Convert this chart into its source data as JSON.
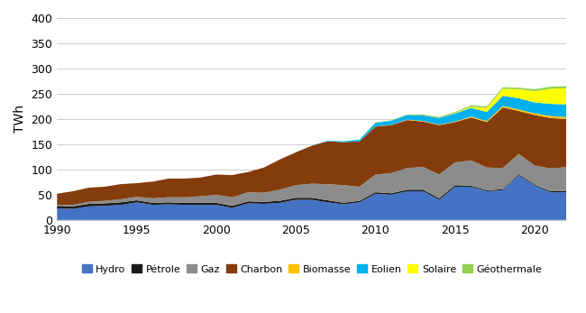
{
  "years": [
    1990,
    1991,
    1992,
    1993,
    1994,
    1995,
    1996,
    1997,
    1998,
    1999,
    2000,
    2001,
    2002,
    2003,
    2004,
    2005,
    2006,
    2007,
    2008,
    2009,
    2010,
    2011,
    2012,
    2013,
    2014,
    2015,
    2016,
    2017,
    2018,
    2019,
    2020,
    2021,
    2022
  ],
  "hydro": [
    23,
    22,
    27,
    28,
    30,
    35,
    30,
    31,
    30,
    30,
    30,
    24,
    33,
    32,
    34,
    40,
    40,
    35,
    31,
    35,
    52,
    50,
    57,
    57,
    40,
    66,
    66,
    57,
    59,
    89,
    68,
    55,
    55
  ],
  "petrole": [
    5,
    5,
    5,
    5,
    5,
    4,
    4,
    4,
    4,
    4,
    4,
    4,
    4,
    4,
    4,
    4,
    4,
    4,
    3,
    3,
    3,
    3,
    3,
    3,
    3,
    3,
    2,
    2,
    2,
    2,
    2,
    2,
    2
  ],
  "gaz": [
    2,
    3,
    4,
    5,
    6,
    7,
    9,
    10,
    11,
    13,
    16,
    17,
    18,
    18,
    22,
    25,
    28,
    32,
    35,
    28,
    35,
    40,
    43,
    45,
    47,
    45,
    50,
    45,
    42,
    40,
    38,
    45,
    48
  ],
  "charbon": [
    22,
    27,
    28,
    28,
    30,
    27,
    33,
    37,
    37,
    37,
    40,
    44,
    40,
    50,
    60,
    65,
    75,
    85,
    85,
    90,
    95,
    95,
    95,
    90,
    98,
    80,
    85,
    90,
    120,
    85,
    100,
    100,
    95
  ],
  "biomasse": [
    0,
    0,
    0,
    0,
    0,
    0,
    0,
    0,
    0,
    0,
    0,
    0,
    0,
    0,
    0,
    0,
    0,
    0,
    0,
    0,
    0.5,
    0.5,
    1,
    1,
    1,
    1,
    2,
    2,
    3,
    3,
    3,
    4,
    4
  ],
  "eolien": [
    0,
    0,
    0,
    0,
    0,
    0,
    0,
    0,
    0,
    0,
    0,
    0,
    0,
    0,
    0,
    0.1,
    0.3,
    1,
    2,
    3,
    7,
    8,
    9,
    11,
    13,
    16,
    17,
    18,
    20,
    22,
    22,
    24,
    25
  ],
  "solaire": [
    0,
    0,
    0,
    0,
    0,
    0,
    0,
    0,
    0,
    0,
    0,
    0,
    0,
    0,
    0,
    0,
    0,
    0,
    0,
    0,
    0,
    0,
    0,
    0,
    0,
    1,
    2,
    8,
    14,
    18,
    22,
    30,
    32
  ],
  "geothermale": [
    0,
    0,
    0,
    0,
    0,
    0,
    0,
    0,
    0,
    0,
    0,
    0,
    0,
    0,
    0,
    0,
    0,
    0,
    0,
    0,
    0.5,
    1,
    1,
    2,
    2,
    2,
    3,
    3,
    3,
    3,
    4,
    4,
    4
  ],
  "colors": {
    "hydro": "#4472C4",
    "petrole": "#1a1a1a",
    "gaz": "#8C8C8C",
    "charbon": "#843C0C",
    "biomasse": "#FFC000",
    "eolien": "#00B0F0",
    "solaire": "#FFFF00",
    "geothermale": "#92D050"
  },
  "ylabel": "TWh",
  "xlim": [
    1990,
    2022
  ],
  "ylim": [
    0,
    400
  ],
  "yticks": [
    0,
    50,
    100,
    150,
    200,
    250,
    300,
    350,
    400
  ],
  "xticks": [
    1990,
    1995,
    2000,
    2005,
    2010,
    2015,
    2020
  ],
  "legend_labels": [
    "Hydro",
    "Pétrole",
    "Gaz",
    "Charbon",
    "Biomasse",
    "Eolien",
    "Solaire",
    "Géothermale"
  ],
  "figsize": [
    6.5,
    3.47
  ],
  "dpi": 100
}
